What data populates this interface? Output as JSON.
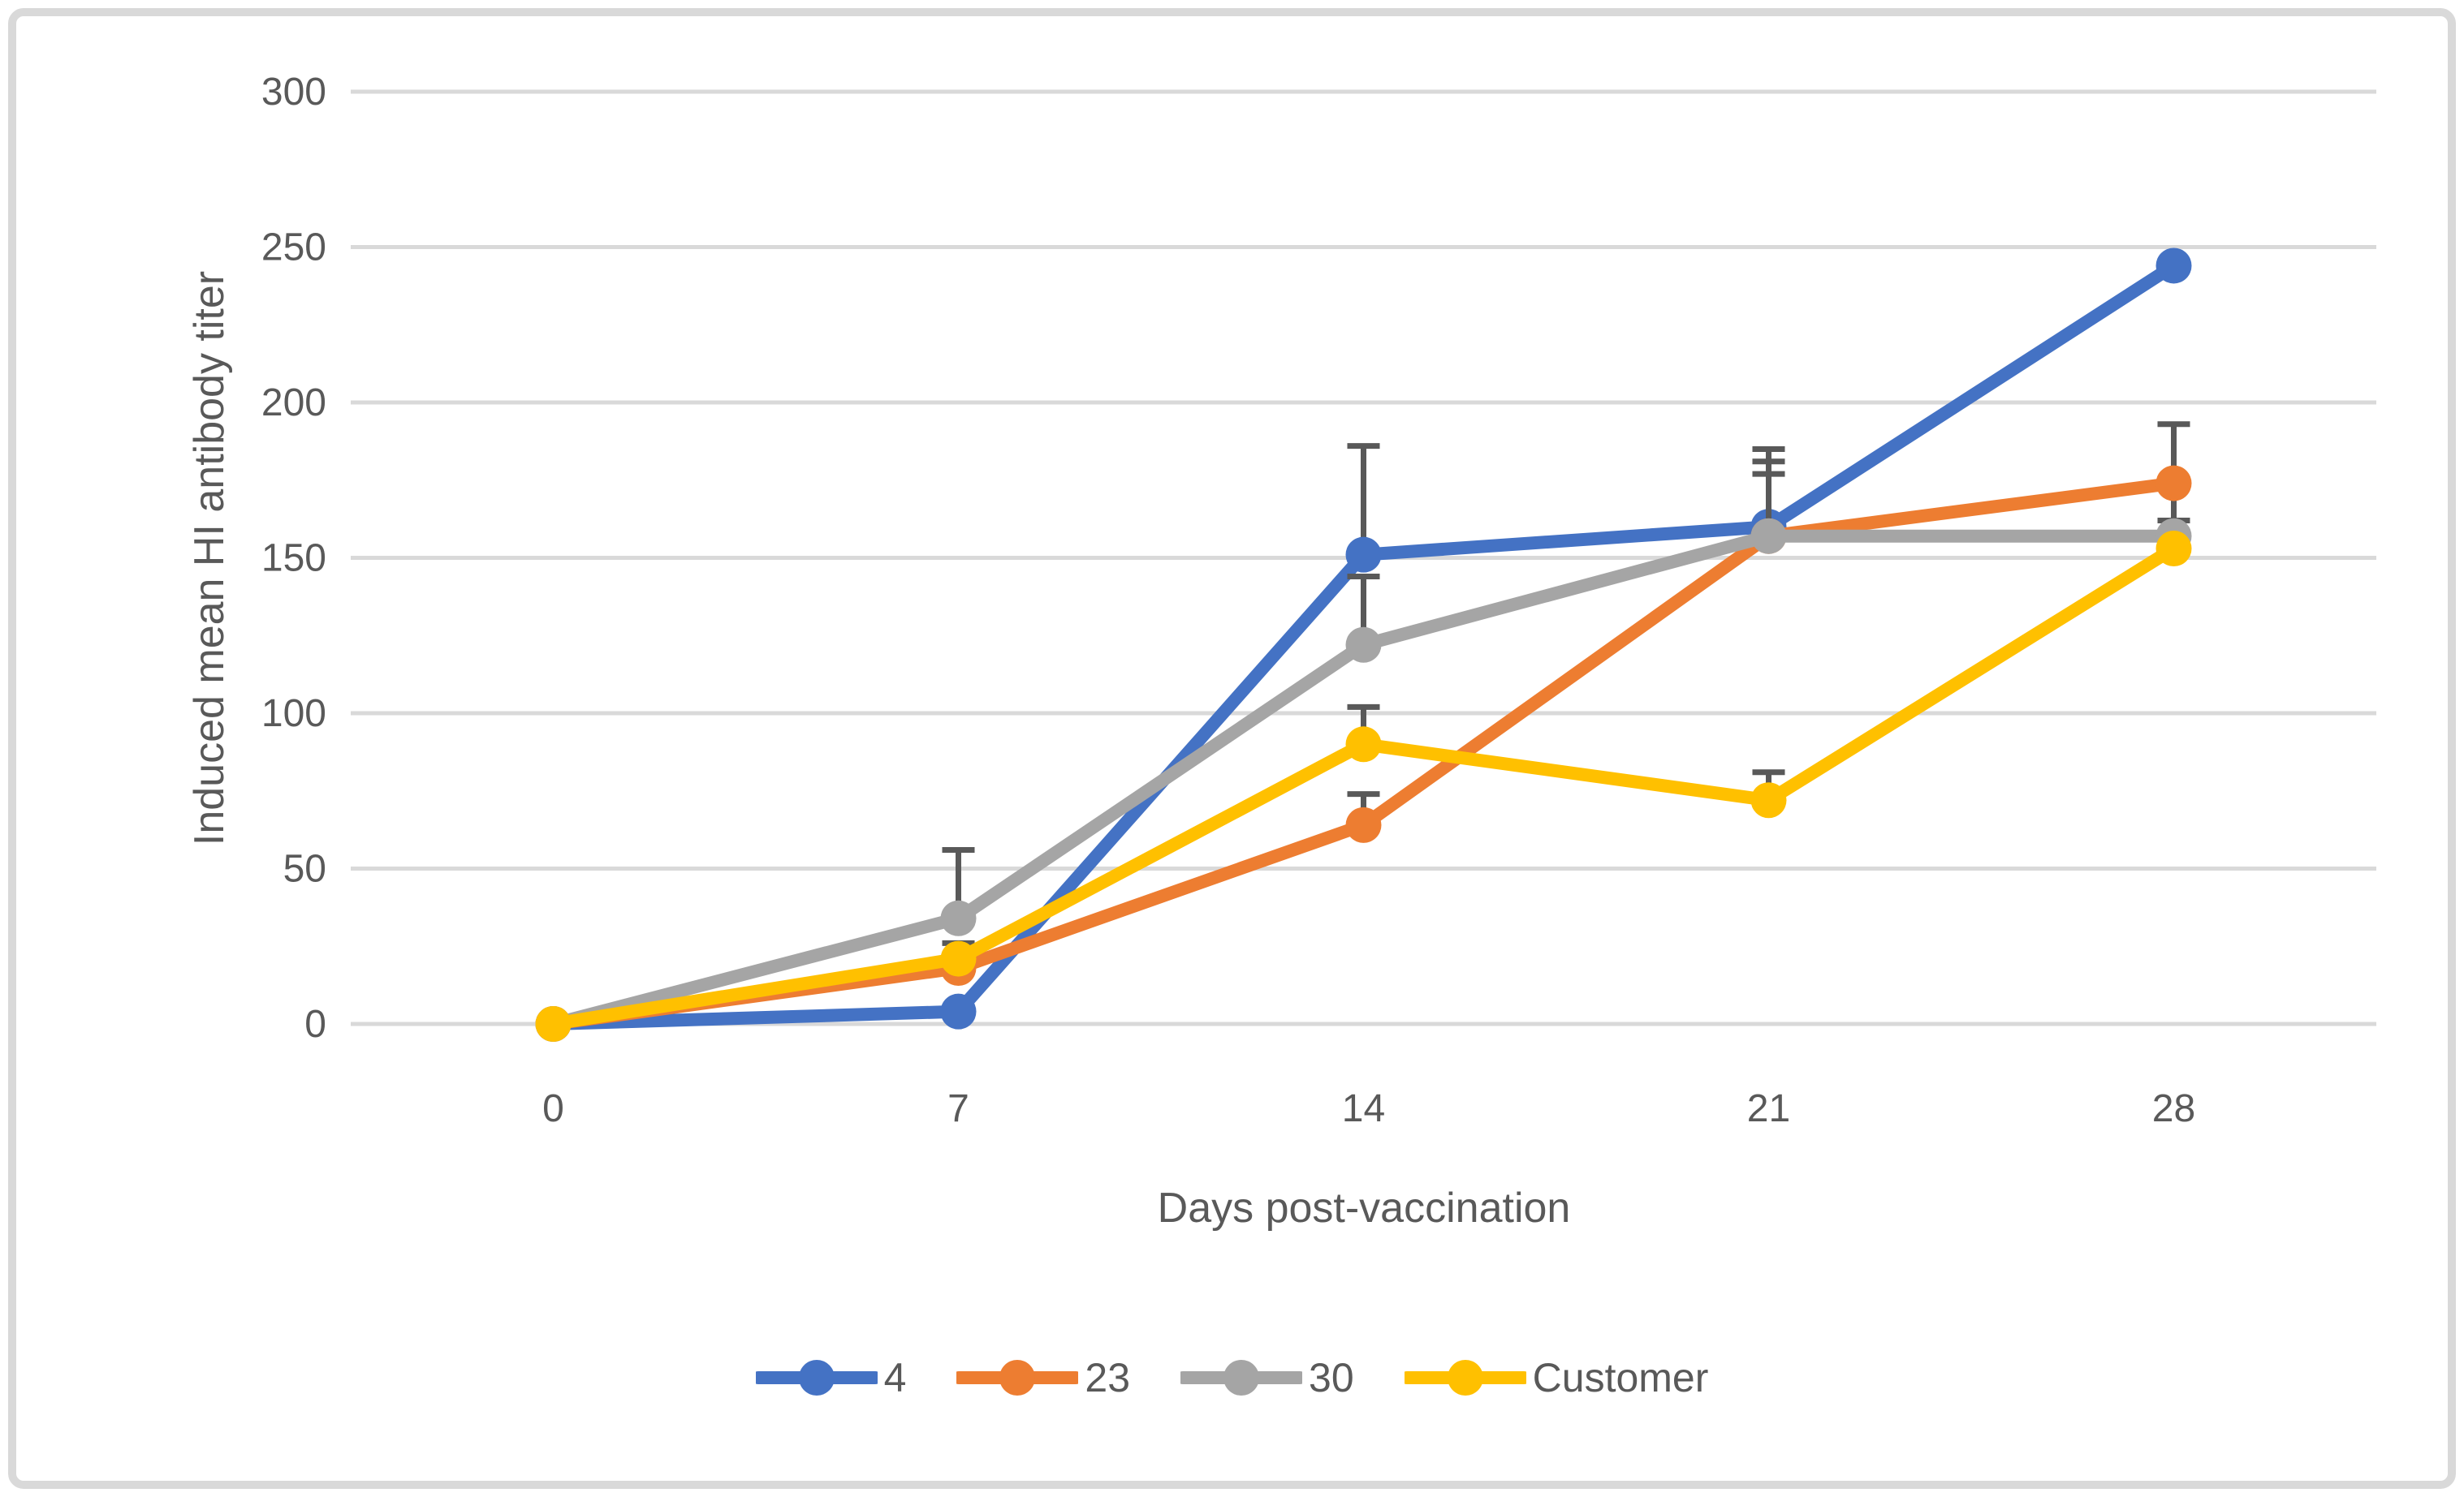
{
  "figure": {
    "background": "#FFFFFF",
    "border_color": "#D9D9D9"
  },
  "chart_data": {
    "type": "line",
    "title": "",
    "xlabel": "Days post-vaccination",
    "ylabel": "Induced mean HI antibody titer",
    "x_categories": [
      "0",
      "7",
      "14",
      "21",
      "28"
    ],
    "y_ticks": [
      0,
      50,
      100,
      150,
      200,
      250,
      300
    ],
    "ylim": [
      0,
      300
    ],
    "grid": "horizontal",
    "gridline_color": "#D9D9D9",
    "axis_text_color": "#595959",
    "error_bar_color": "#595959",
    "legend_position": "bottom-center",
    "series": [
      {
        "name": "4",
        "color": "#4472C4",
        "values": [
          0,
          4,
          151,
          160,
          244
        ],
        "error_top": [
          null,
          null,
          186,
          185,
          null
        ],
        "error_bottom": [
          null,
          null,
          null,
          null,
          null
        ]
      },
      {
        "name": "23",
        "color": "#ED7D31",
        "values": [
          0,
          18,
          64,
          157,
          174
        ],
        "error_top": [
          null,
          null,
          74,
          177,
          193
        ],
        "error_bottom": [
          null,
          null,
          null,
          null,
          162
        ]
      },
      {
        "name": "30",
        "color": "#A5A5A5",
        "values": [
          0,
          34,
          122,
          157,
          157
        ],
        "error_top": [
          null,
          56,
          144,
          181,
          null
        ],
        "error_bottom": [
          null,
          null,
          null,
          null,
          null
        ]
      },
      {
        "name": "Customer",
        "color": "#FFC000",
        "values": [
          0,
          21,
          90,
          72,
          153
        ],
        "error_top": [
          null,
          26,
          102,
          81,
          null
        ],
        "error_bottom": [
          null,
          null,
          null,
          null,
          null
        ]
      }
    ]
  }
}
